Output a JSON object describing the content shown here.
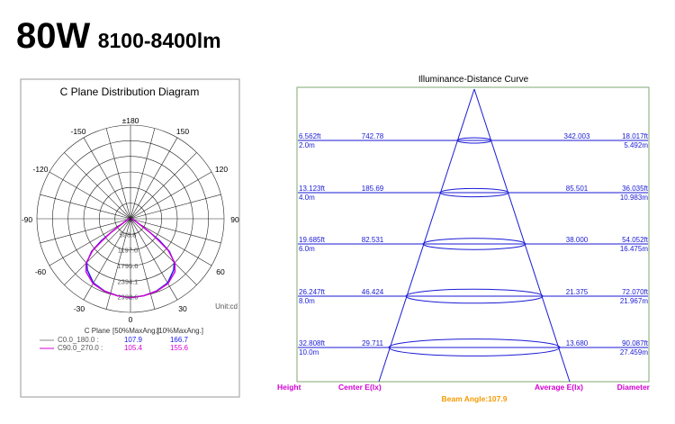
{
  "header": {
    "power": "80W",
    "lumens": "8100-8400lm"
  },
  "chart_data": [
    {
      "type": "polar",
      "title": "C Plane Distribution Diagram",
      "angle_labels": [
        "±180",
        "150",
        "-150",
        "120",
        "-120",
        "90",
        "-90",
        "60",
        "-60",
        "30",
        "-30",
        "0"
      ],
      "radial_labels": [
        "598.8",
        "1197.0",
        "1795.6",
        "2394.1",
        "2992.6"
      ],
      "unit": "Unit:cd",
      "table": {
        "headers": [
          "C Plane",
          "[50%MaxAng.]",
          "[10%MaxAng.]"
        ],
        "rows": [
          {
            "name": "C0.0_180.0 :",
            "half": "107.9",
            "tenth": "166.7",
            "color": "#1a1aee"
          },
          {
            "name": "C90.0_270.0 :",
            "half": "105.4",
            "tenth": "155.6",
            "color": "#d400d4"
          }
        ]
      },
      "series": [
        {
          "name": "C0.0_180.0",
          "color": "#1a1aee",
          "angles": [
            0,
            10,
            20,
            30,
            40,
            45,
            50,
            53,
            55,
            60,
            70,
            80,
            90
          ],
          "values": [
            3040,
            3000,
            2950,
            2850,
            2580,
            2380,
            1950,
            1400,
            900,
            320,
            120,
            60,
            40
          ]
        },
        {
          "name": "C90.0_270.0",
          "color": "#d400d4",
          "angles": [
            0,
            10,
            20,
            30,
            40,
            45,
            50,
            52,
            55,
            60,
            70,
            80,
            90
          ],
          "values": [
            3040,
            3000,
            2960,
            2880,
            2660,
            2420,
            1900,
            1400,
            900,
            320,
            120,
            60,
            40
          ]
        }
      ],
      "rmax": 3600
    },
    {
      "type": "cone",
      "title": "Illuminance-Distance Curve",
      "rows": [
        {
          "height_ft": "6.562ft",
          "height_m": "2.0m",
          "lux": "742.78",
          "avg": "342.003",
          "diam_ft": "18.017ft",
          "diam_m": "5.492m"
        },
        {
          "height_ft": "13.123ft",
          "height_m": "4.0m",
          "lux": "185.69",
          "avg": "85.501",
          "diam_ft": "36.035ft",
          "diam_m": "10.983m"
        },
        {
          "height_ft": "19.685ft",
          "height_m": "6.0m",
          "lux": "82.531",
          "avg": "38.000",
          "diam_ft": "54.052ft",
          "diam_m": "16.475m"
        },
        {
          "height_ft": "26.247ft",
          "height_m": "8.0m",
          "lux": "46.424",
          "avg": "21.375",
          "diam_ft": "72.070ft",
          "diam_m": "21.967m"
        },
        {
          "height_ft": "32.808ft",
          "height_m": "10.0m",
          "lux": "29.711",
          "avg": "13.680",
          "diam_ft": "90.087ft",
          "diam_m": "27.459m"
        }
      ],
      "footer": {
        "height": "Height",
        "center": "Center E(lx)",
        "average": "Average E(lx)",
        "diameter": "Diameter",
        "beam": "Beam Angle:107.9"
      }
    }
  ]
}
